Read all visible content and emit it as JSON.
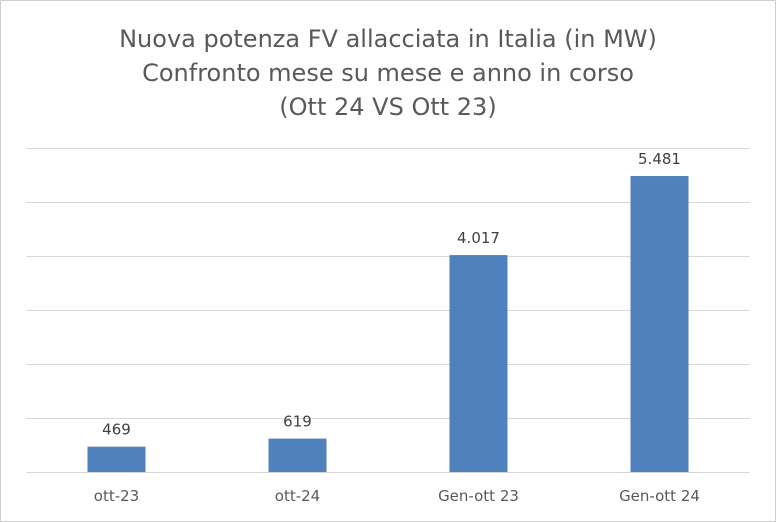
{
  "chart_data": {
    "type": "bar",
    "title_lines": [
      "Nuova potenza FV allacciata in Italia (in MW)",
      "Confronto mese su mese e anno in corso",
      "(Ott 24 VS Ott 23)"
    ],
    "categories": [
      "ott-23",
      "ott-24",
      "Gen-ott 23",
      "Gen-ott 24"
    ],
    "values": [
      469,
      619,
      4017,
      5481
    ],
    "data_labels": [
      "469",
      "619",
      "4.017",
      "5.481"
    ],
    "ylim": [
      0,
      6000
    ],
    "y_gridlines": [
      0,
      1000,
      2000,
      3000,
      4000,
      5000,
      6000
    ],
    "grid": true,
    "legend": "none",
    "bar_color": "#4f81bd",
    "grid_color": "#d9d9d9"
  }
}
